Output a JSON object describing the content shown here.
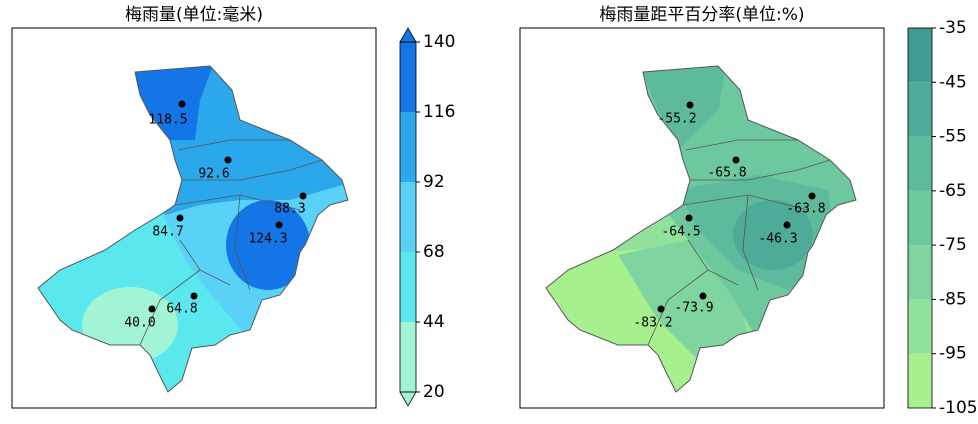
{
  "maps": [
    {
      "title": "梅雨量(单位:毫米)",
      "colorbar": {
        "ticks": [
          20,
          44,
          68,
          92,
          116,
          140
        ],
        "colors": [
          "#a2f5d4",
          "#5ae8ee",
          "#5ad2f8",
          "#2ba7ec",
          "#1476e6"
        ],
        "extend": true
      },
      "stations": [
        "118.5",
        "92.6",
        "88.3",
        "84.7",
        "124.3",
        "64.8",
        "40.0"
      ]
    },
    {
      "title": "梅雨量距平百分率(单位:%)",
      "colorbar": {
        "ticks": [
          -105,
          -95,
          -85,
          -75,
          -65,
          -55,
          -45,
          -35
        ],
        "colors": [
          "#a6f08e",
          "#90e29a",
          "#80d4a0",
          "#6ec89e",
          "#5eba9c",
          "#4dab98",
          "#3e9c94"
        ],
        "extend": false
      },
      "stations": [
        "-55.2",
        "-65.8",
        "-63.8",
        "-64.5",
        "-46.3",
        "-73.9",
        "-83.2"
      ]
    }
  ]
}
